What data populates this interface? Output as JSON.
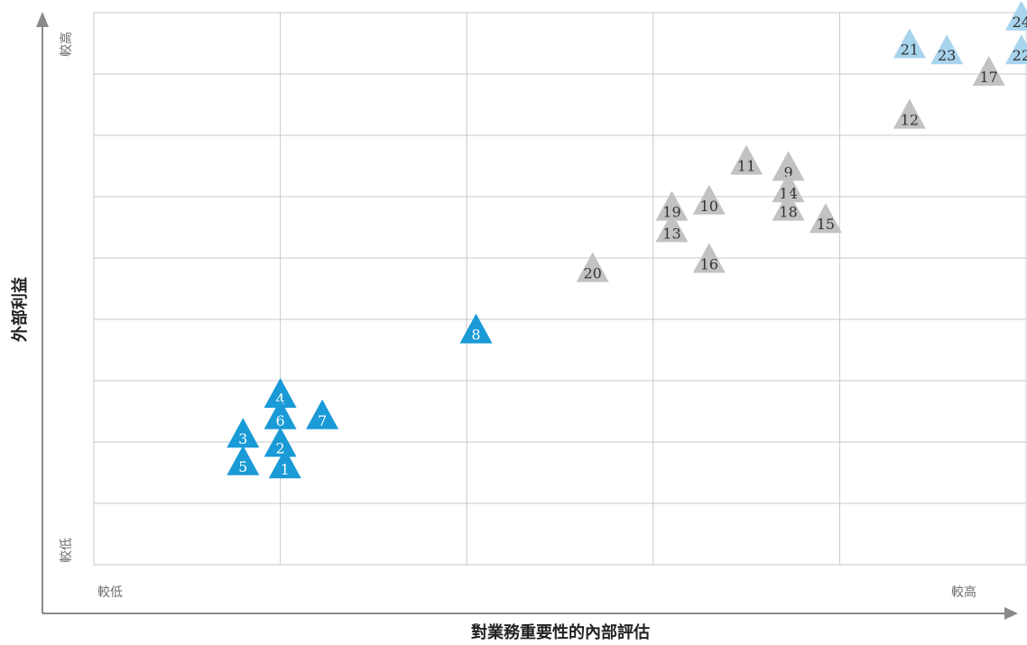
{
  "chart_data": {
    "type": "scatter",
    "title": "",
    "xlabel": "對業務重要性的內部評估",
    "ylabel": "外部利益",
    "x_low_label": "較低",
    "x_high_label": "較高",
    "y_low_label": "較低",
    "y_high_label": "較高",
    "xlim": [
      0,
      10
    ],
    "ylim": [
      0,
      9
    ],
    "grid": true,
    "legend": "none",
    "colors": {
      "blue": "#1a9ad6",
      "light_blue": "#a9d4ee",
      "gray": "#c2c2c2",
      "text_on_blue": "#ffffff",
      "text_on_gray": "#333333"
    },
    "points": [
      {
        "label": "1",
        "x": 2.05,
        "y": 1.6,
        "group": "blue"
      },
      {
        "label": "2",
        "x": 2.0,
        "y": 1.95,
        "group": "blue"
      },
      {
        "label": "3",
        "x": 1.6,
        "y": 2.1,
        "group": "blue"
      },
      {
        "label": "4",
        "x": 2.0,
        "y": 2.75,
        "group": "blue"
      },
      {
        "label": "5",
        "x": 1.6,
        "y": 1.65,
        "group": "blue"
      },
      {
        "label": "6",
        "x": 2.0,
        "y": 2.4,
        "group": "blue"
      },
      {
        "label": "7",
        "x": 2.45,
        "y": 2.4,
        "group": "blue"
      },
      {
        "label": "8",
        "x": 4.1,
        "y": 3.8,
        "group": "blue"
      },
      {
        "label": "9",
        "x": 7.45,
        "y": 6.45,
        "group": "gray"
      },
      {
        "label": "10",
        "x": 6.6,
        "y": 5.9,
        "group": "gray"
      },
      {
        "label": "11",
        "x": 7.0,
        "y": 6.55,
        "group": "gray"
      },
      {
        "label": "12",
        "x": 8.75,
        "y": 7.3,
        "group": "gray"
      },
      {
        "label": "13",
        "x": 6.2,
        "y": 5.45,
        "group": "gray"
      },
      {
        "label": "14",
        "x": 7.45,
        "y": 6.1,
        "group": "gray"
      },
      {
        "label": "15",
        "x": 7.85,
        "y": 5.6,
        "group": "gray"
      },
      {
        "label": "16",
        "x": 6.6,
        "y": 4.95,
        "group": "gray"
      },
      {
        "label": "17",
        "x": 9.6,
        "y": 8.0,
        "group": "gray"
      },
      {
        "label": "18",
        "x": 7.45,
        "y": 5.8,
        "group": "gray"
      },
      {
        "label": "19",
        "x": 6.2,
        "y": 5.8,
        "group": "gray"
      },
      {
        "label": "20",
        "x": 5.35,
        "y": 4.8,
        "group": "gray"
      },
      {
        "label": "21",
        "x": 8.75,
        "y": 8.45,
        "group": "light_blue"
      },
      {
        "label": "22",
        "x": 9.95,
        "y": 8.35,
        "group": "light_blue"
      },
      {
        "label": "23",
        "x": 9.15,
        "y": 8.35,
        "group": "light_blue"
      },
      {
        "label": "24",
        "x": 9.95,
        "y": 8.9,
        "group": "light_blue"
      }
    ]
  }
}
